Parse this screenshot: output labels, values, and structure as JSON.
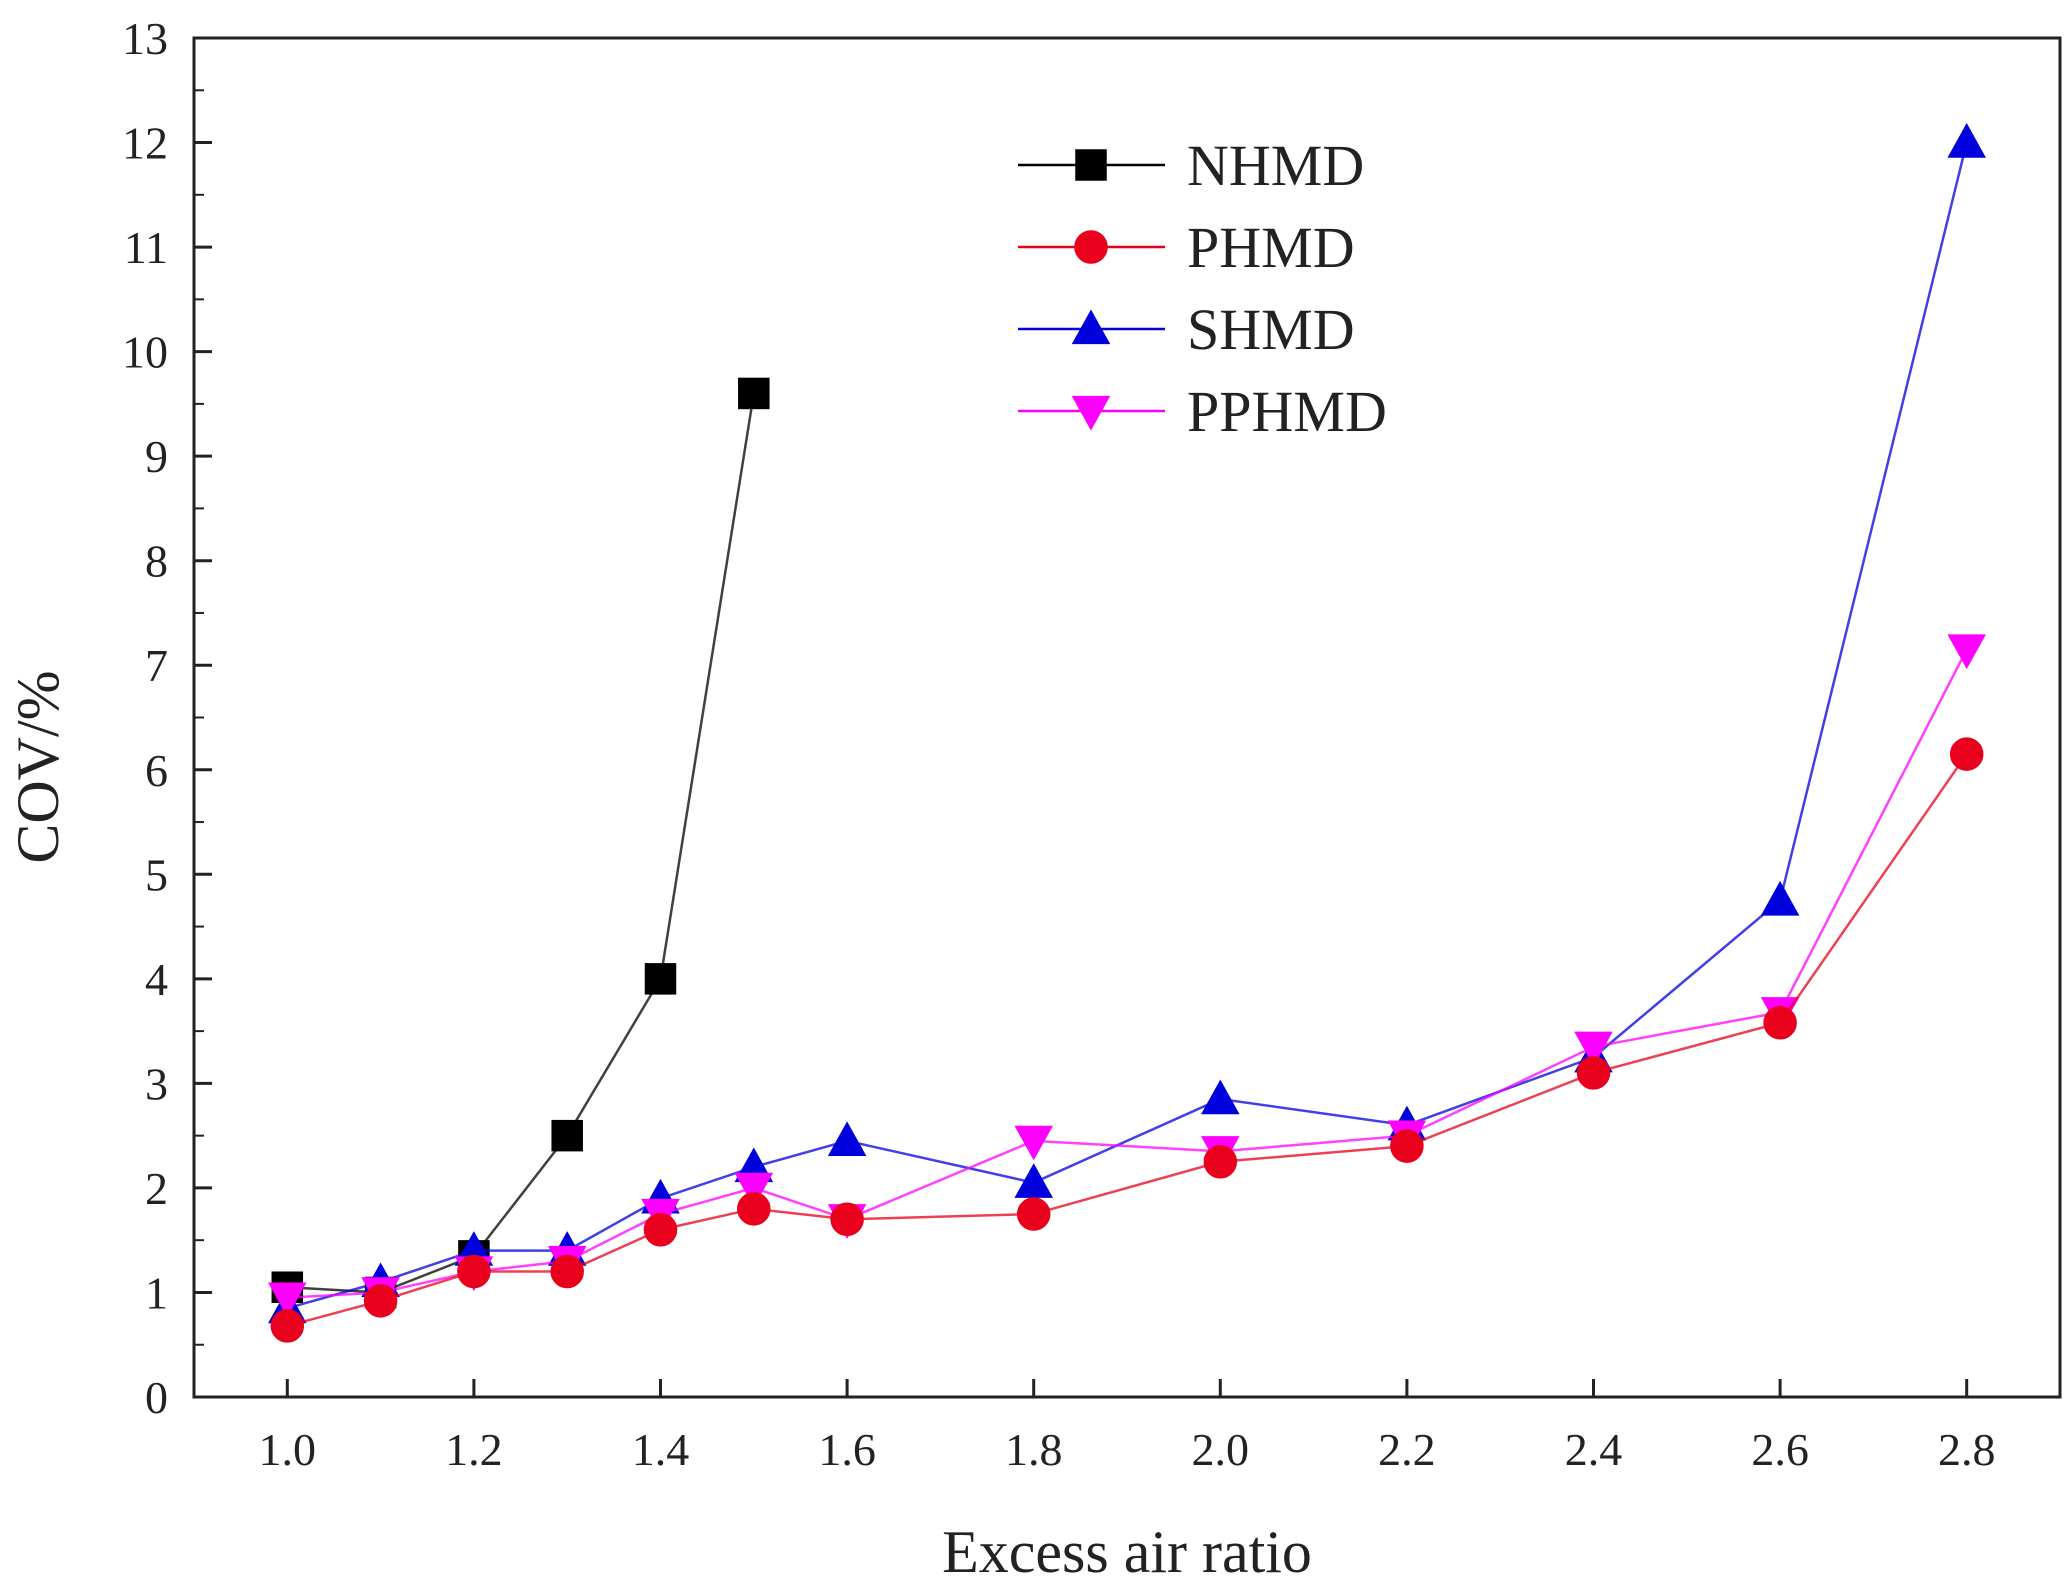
{
  "chart_data": {
    "type": "line",
    "title": "",
    "xlabel": "Excess air ratio",
    "ylabel": "COV/%",
    "xlim": [
      0.9,
      2.9
    ],
    "ylim": [
      0,
      13
    ],
    "xticks": [
      1.0,
      1.2,
      1.4,
      1.6,
      1.8,
      2.0,
      2.2,
      2.4,
      2.6,
      2.8
    ],
    "xtick_labels": [
      "1.0",
      "1.2",
      "1.4",
      "1.6",
      "1.8",
      "2.0",
      "2.2",
      "2.4",
      "2.6",
      "2.8"
    ],
    "yticks": [
      0,
      1,
      2,
      3,
      4,
      5,
      6,
      7,
      8,
      9,
      10,
      11,
      12,
      13
    ],
    "ytick_labels": [
      "0",
      "1",
      "2",
      "3",
      "4",
      "5",
      "6",
      "7",
      "8",
      "9",
      "10",
      "11",
      "12",
      "13"
    ],
    "grid": false,
    "legend_position": "top-center",
    "series": [
      {
        "name": "NHMD",
        "color": "#000000",
        "marker": "square",
        "x": [
          1.0,
          1.1,
          1.2,
          1.3,
          1.4,
          1.5
        ],
        "y": [
          1.05,
          1.0,
          1.35,
          2.5,
          4.0,
          9.6
        ]
      },
      {
        "name": "PHMD",
        "color": "#e8001c",
        "marker": "circle",
        "x": [
          1.0,
          1.1,
          1.2,
          1.3,
          1.4,
          1.5,
          1.6,
          1.8,
          2.0,
          2.2,
          2.4,
          2.6,
          2.8
        ],
        "y": [
          0.68,
          0.92,
          1.2,
          1.2,
          1.6,
          1.8,
          1.7,
          1.75,
          2.25,
          2.4,
          3.1,
          3.58,
          6.15
        ]
      },
      {
        "name": "SHMD",
        "color": "#0000dd",
        "marker": "triangle-up",
        "x": [
          1.0,
          1.1,
          1.2,
          1.3,
          1.4,
          1.5,
          1.6,
          1.8,
          2.0,
          2.2,
          2.4,
          2.6,
          2.8
        ],
        "y": [
          0.85,
          1.1,
          1.4,
          1.4,
          1.9,
          2.2,
          2.45,
          2.05,
          2.85,
          2.6,
          3.25,
          4.75,
          12.0
        ]
      },
      {
        "name": "PPHMD",
        "color": "#ff00ff",
        "marker": "triangle-down",
        "x": [
          1.0,
          1.1,
          1.2,
          1.3,
          1.4,
          1.5,
          1.6,
          1.8,
          2.0,
          2.2,
          2.4,
          2.6,
          2.8
        ],
        "y": [
          0.95,
          1.0,
          1.2,
          1.3,
          1.75,
          2.0,
          1.7,
          2.45,
          2.35,
          2.5,
          3.35,
          3.68,
          7.15
        ]
      }
    ]
  }
}
